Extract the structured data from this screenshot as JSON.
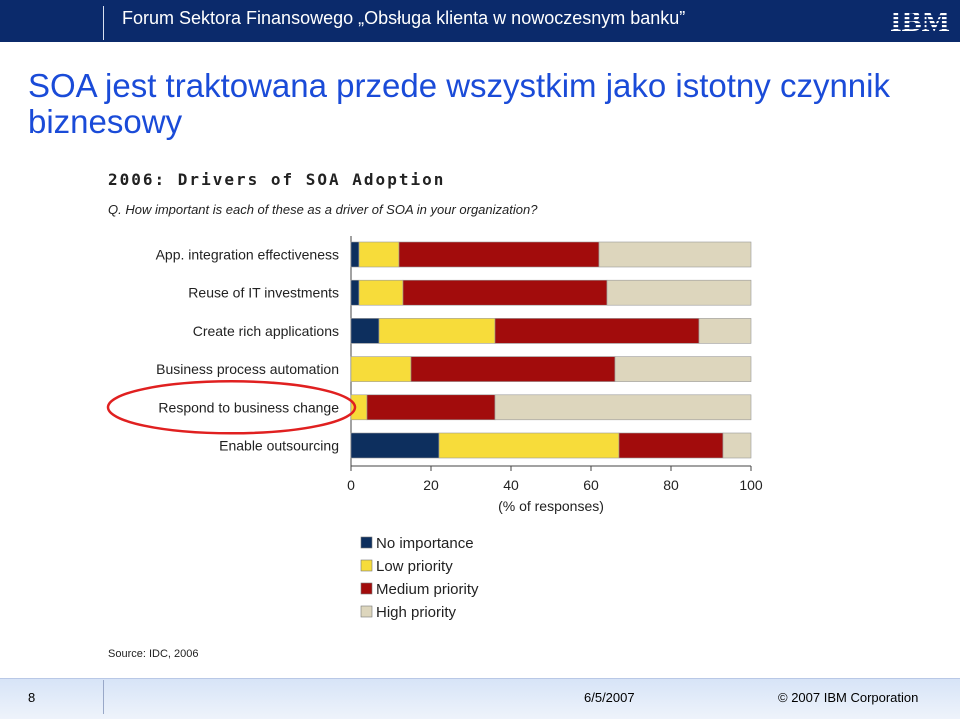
{
  "header": {
    "title": "Forum Sektora Finansowego „Obsługa klienta w nowoczesnym banku”",
    "logo_text": "IBM"
  },
  "slide": {
    "title": "SOA jest traktowana przede wszystkim jako istotny czynnik biznesowy"
  },
  "chart_data": {
    "type": "bar",
    "orientation": "horizontal",
    "stacked": true,
    "title": "2006: Drivers of SOA Adoption",
    "subtitle": "Q. How important is each of these as a driver of SOA in your organization?",
    "xlabel": "(% of responses)",
    "ylabel": "",
    "xlim": [
      0,
      100
    ],
    "xticks": [
      0,
      20,
      40,
      60,
      80,
      100
    ],
    "categories": [
      "App. integration effectiveness",
      "Reuse of IT investments",
      "Create rich applications",
      "Business process automation",
      "Respond to business change",
      "Enable outsourcing"
    ],
    "series": [
      {
        "name": "No importance",
        "color": "#0d2f5e",
        "values": [
          2,
          2,
          7,
          0,
          0,
          22
        ]
      },
      {
        "name": "Low priority",
        "color": "#f7dc3a",
        "values": [
          10,
          11,
          29,
          15,
          4,
          45
        ]
      },
      {
        "name": "Medium priority",
        "color": "#a20c0c",
        "values": [
          50,
          51,
          51,
          51,
          32,
          26
        ]
      },
      {
        "name": "High priority",
        "color": "#ddd6bd",
        "values": [
          38,
          36,
          13,
          34,
          64,
          7
        ]
      }
    ],
    "legend_position": "bottom-center",
    "highlighted_category": "Respond to business change",
    "highlight_color": "#e02020",
    "source": "Source: IDC, 2006"
  },
  "footer": {
    "page_number": "8",
    "date": "6/5/2007",
    "copyright": "© 2007 IBM Corporation"
  }
}
